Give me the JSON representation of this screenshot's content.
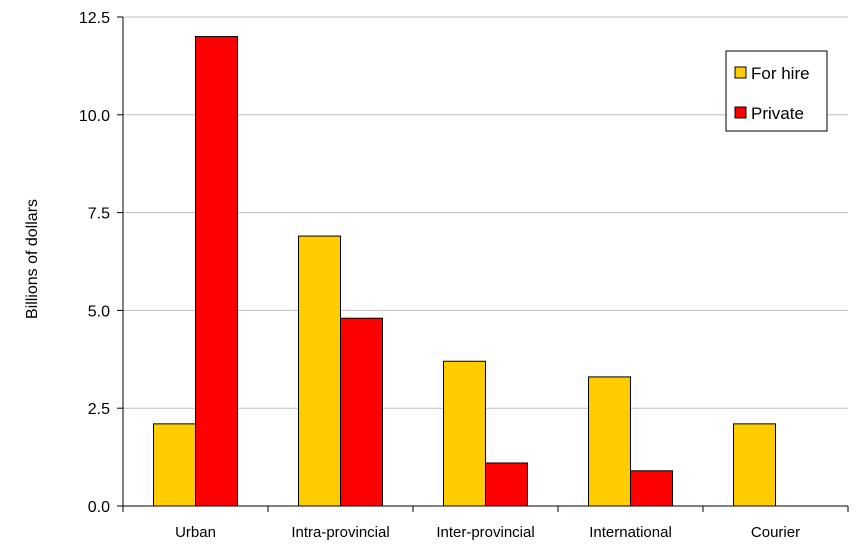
{
  "chart_data": {
    "type": "bar",
    "title": "",
    "xlabel": "",
    "ylabel": "Billions of dollars",
    "categories": [
      "Urban",
      "Intra-provincial",
      "Inter-provincial",
      "International",
      "Courier"
    ],
    "series": [
      {
        "name": "For hire",
        "color": "#FFCC00",
        "values": [
          2.1,
          6.9,
          3.7,
          3.3,
          2.1
        ]
      },
      {
        "name": "Private",
        "color": "#FF0000",
        "values": [
          12.0,
          4.8,
          1.1,
          0.9,
          null
        ]
      }
    ],
    "ylim": [
      0,
      12.5
    ],
    "yticks": [
      0.0,
      2.5,
      5.0,
      7.5,
      10.0,
      12.5
    ],
    "ytick_labels": [
      "0.0",
      "2.5",
      "5.0",
      "7.5",
      "10.0",
      "12.5"
    ],
    "grid": true,
    "legend_position": "top-right"
  }
}
